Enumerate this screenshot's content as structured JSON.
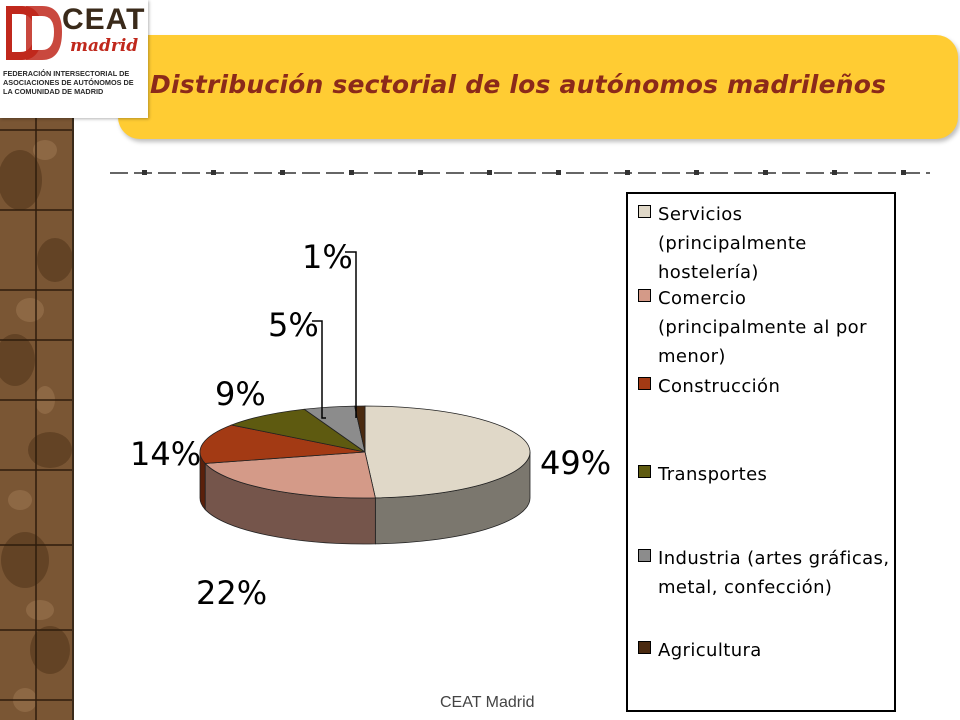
{
  "logo": {
    "ceat": "CEAT",
    "madrid": "madrid",
    "federation": "FEDERACIÓN INTERSECTORIAL DE ASOCIACIONES DE AUTÓNOMOS DE LA COMUNIDAD DE MADRID"
  },
  "header": {
    "title": "Distribución sectorial de los autónomos madrileños"
  },
  "footer": {
    "text": "CEAT Madrid"
  },
  "colors": {
    "title_bar": "#ffcc33",
    "title_text": "#8b2a1a",
    "stone": "#7a5a3a"
  },
  "chart_data": {
    "type": "pie",
    "style": "3d-exploded-depth",
    "categories": [
      "Servicios (principalmente hostelería)",
      "Comercio (principalmente al por menor)",
      "Construcción",
      "Transportes",
      "Industria (artes gráficas, metal, confección)",
      "Agricultura"
    ],
    "values": [
      49,
      22,
      14,
      9,
      5,
      1
    ],
    "labels": [
      "49%",
      "22%",
      "14%",
      "9%",
      "5%",
      "1%"
    ],
    "colors": [
      "#e0d8c8",
      "#d49a88",
      "#a33a14",
      "#5e5a10",
      "#8c8c8c",
      "#4a2a10"
    ],
    "legend_position": "right"
  }
}
